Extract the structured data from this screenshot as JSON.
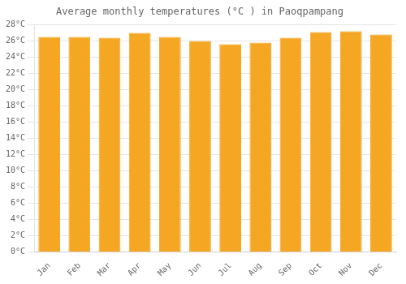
{
  "chart_data": {
    "type": "bar",
    "title": "Average monthly temperatures (°C ) in Paoqpampang",
    "categories": [
      "Jan",
      "Feb",
      "Mar",
      "Apr",
      "May",
      "Jun",
      "Jul",
      "Aug",
      "Sep",
      "Oct",
      "Nov",
      "Dec"
    ],
    "values": [
      26.5,
      26.5,
      26.4,
      27.0,
      26.5,
      26.0,
      25.6,
      25.8,
      26.4,
      27.1,
      27.2,
      26.8
    ],
    "color": "#F5A623",
    "ylim": [
      0,
      28
    ],
    "yticks": [
      {
        "value": 0,
        "label": "0°C"
      },
      {
        "value": 2,
        "label": "2°C"
      },
      {
        "value": 4,
        "label": "4°C"
      },
      {
        "value": 6,
        "label": "6°C"
      },
      {
        "value": 8,
        "label": "8°C"
      },
      {
        "value": 10,
        "label": "10°C"
      },
      {
        "value": 12,
        "label": "12°C"
      },
      {
        "value": 14,
        "label": "14°C"
      },
      {
        "value": 16,
        "label": "16°C"
      },
      {
        "value": 18,
        "label": "18°C"
      },
      {
        "value": 20,
        "label": "20°C"
      },
      {
        "value": 22,
        "label": "22°C"
      },
      {
        "value": 24,
        "label": "24°C"
      },
      {
        "value": 26,
        "label": "26°C"
      },
      {
        "value": 28,
        "label": "28°C"
      }
    ],
    "grid": true
  }
}
